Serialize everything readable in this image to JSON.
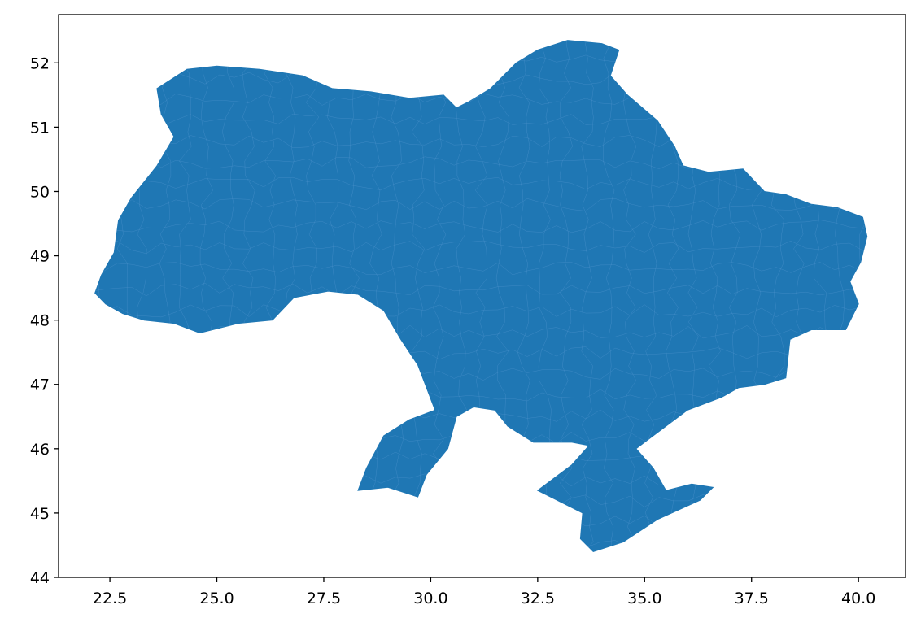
{
  "chart_data": {
    "type": "geo-map",
    "title": "",
    "xlabel": "",
    "ylabel": "",
    "xlim": [
      21.3,
      41.1
    ],
    "ylim": [
      44.0,
      52.75
    ],
    "x_ticks": [
      "22.5",
      "25.0",
      "27.5",
      "30.0",
      "32.5",
      "35.0",
      "37.5",
      "40.0"
    ],
    "y_ticks": [
      "44",
      "45",
      "46",
      "47",
      "48",
      "49",
      "50",
      "51",
      "52"
    ],
    "grid": false,
    "fill_color": "#1f77b4",
    "boundary_color": "#5b9bd5",
    "regions": [
      {
        "id": "ukraine-mainland",
        "outline": [
          [
            22.15,
            48.42
          ],
          [
            22.3,
            48.7
          ],
          [
            22.6,
            49.05
          ],
          [
            22.7,
            49.55
          ],
          [
            23.0,
            49.9
          ],
          [
            23.6,
            50.4
          ],
          [
            24.0,
            50.85
          ],
          [
            23.7,
            51.2
          ],
          [
            23.6,
            51.6
          ],
          [
            24.3,
            51.9
          ],
          [
            25.0,
            51.95
          ],
          [
            26.0,
            51.9
          ],
          [
            27.0,
            51.8
          ],
          [
            27.7,
            51.6
          ],
          [
            28.6,
            51.55
          ],
          [
            29.5,
            51.45
          ],
          [
            30.3,
            51.5
          ],
          [
            30.6,
            51.3
          ],
          [
            30.9,
            51.4
          ],
          [
            31.4,
            51.6
          ],
          [
            32.0,
            52.0
          ],
          [
            32.5,
            52.2
          ],
          [
            33.2,
            52.35
          ],
          [
            34.0,
            52.3
          ],
          [
            34.4,
            52.2
          ],
          [
            34.2,
            51.8
          ],
          [
            34.6,
            51.5
          ],
          [
            35.3,
            51.1
          ],
          [
            35.7,
            50.7
          ],
          [
            35.9,
            50.4
          ],
          [
            36.5,
            50.3
          ],
          [
            37.3,
            50.35
          ],
          [
            37.8,
            50.0
          ],
          [
            38.3,
            49.95
          ],
          [
            38.9,
            49.8
          ],
          [
            39.5,
            49.75
          ],
          [
            40.1,
            49.6
          ],
          [
            40.2,
            49.3
          ],
          [
            40.05,
            48.9
          ],
          [
            39.8,
            48.6
          ],
          [
            40.0,
            48.25
          ],
          [
            39.7,
            47.85
          ],
          [
            38.9,
            47.85
          ],
          [
            38.4,
            47.7
          ],
          [
            38.3,
            47.1
          ],
          [
            37.8,
            47.0
          ],
          [
            37.2,
            46.95
          ],
          [
            36.8,
            46.8
          ],
          [
            36.0,
            46.6
          ],
          [
            35.5,
            46.35
          ],
          [
            35.0,
            46.1
          ],
          [
            34.8,
            46.0
          ],
          [
            35.2,
            45.7
          ],
          [
            35.5,
            45.35
          ],
          [
            36.1,
            45.45
          ],
          [
            36.6,
            45.4
          ],
          [
            36.3,
            45.2
          ],
          [
            35.3,
            44.9
          ],
          [
            34.5,
            44.55
          ],
          [
            33.8,
            44.4
          ],
          [
            33.5,
            44.6
          ],
          [
            33.55,
            45.0
          ],
          [
            32.5,
            45.35
          ],
          [
            33.3,
            45.75
          ],
          [
            33.7,
            46.05
          ],
          [
            33.3,
            46.1
          ],
          [
            32.4,
            46.1
          ],
          [
            31.8,
            46.35
          ],
          [
            31.5,
            46.6
          ],
          [
            31.0,
            46.65
          ],
          [
            30.6,
            46.5
          ],
          [
            30.4,
            46.0
          ],
          [
            29.9,
            45.6
          ],
          [
            29.7,
            45.25
          ],
          [
            29.0,
            45.4
          ],
          [
            28.3,
            45.35
          ],
          [
            28.5,
            45.7
          ],
          [
            28.9,
            46.2
          ],
          [
            29.5,
            46.45
          ],
          [
            30.1,
            46.6
          ],
          [
            29.7,
            47.3
          ],
          [
            29.3,
            47.7
          ],
          [
            28.9,
            48.15
          ],
          [
            28.3,
            48.4
          ],
          [
            27.6,
            48.45
          ],
          [
            26.8,
            48.35
          ],
          [
            26.3,
            48.0
          ],
          [
            25.5,
            47.95
          ],
          [
            24.6,
            47.8
          ],
          [
            24.0,
            47.95
          ],
          [
            23.3,
            48.0
          ],
          [
            22.8,
            48.1
          ],
          [
            22.4,
            48.25
          ]
        ]
      }
    ]
  }
}
